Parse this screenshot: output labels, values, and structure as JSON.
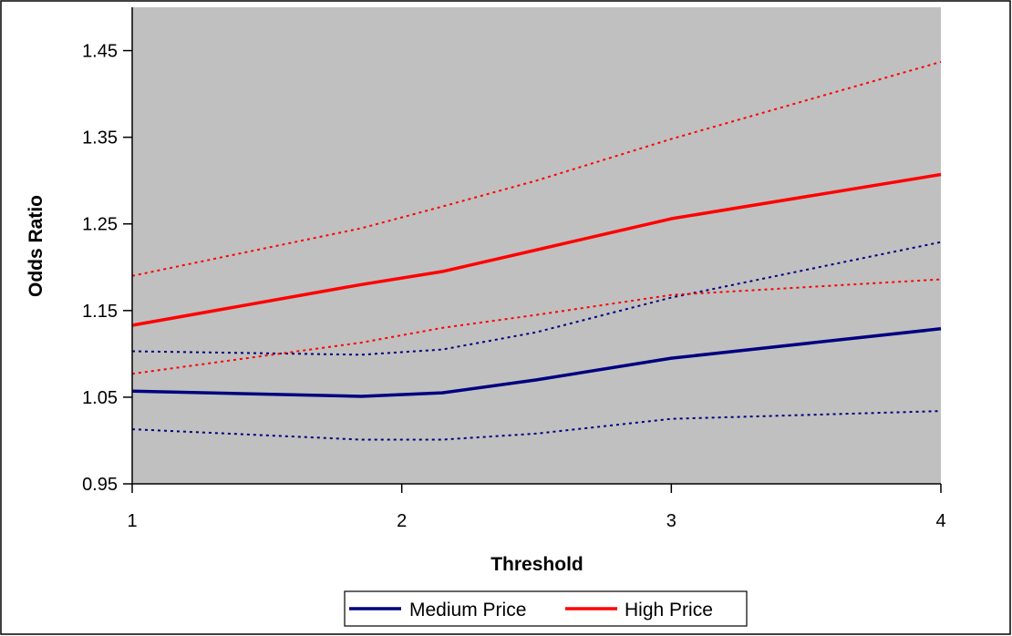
{
  "chart_data": {
    "type": "line",
    "title": "",
    "xlabel": "Threshold",
    "ylabel": "Odds Ratio",
    "x": [
      1,
      1.85,
      2.15,
      2.5,
      3,
      4
    ],
    "xticks": [
      "1",
      "2",
      "3",
      "4"
    ],
    "xtick_values": [
      1,
      2,
      3,
      4
    ],
    "yticks": [
      "0.95",
      "1.05",
      "1.15",
      "1.25",
      "1.35",
      "1.45"
    ],
    "ytick_values": [
      0.95,
      1.05,
      1.15,
      1.25,
      1.35,
      1.45
    ],
    "xlim": [
      1,
      4
    ],
    "ylim": [
      0.95,
      1.5
    ],
    "grid": false,
    "plot_background": "#c0c0c0",
    "legend_position": "bottom",
    "series": [
      {
        "name": "Medium Price",
        "color": "#000080",
        "style": "solid",
        "values": [
          1.057,
          1.051,
          1.055,
          1.07,
          1.095,
          1.129
        ]
      },
      {
        "name": "",
        "color": "#000080",
        "style": "dotted",
        "values": [
          1.103,
          1.099,
          1.105,
          1.125,
          1.165,
          1.229
        ]
      },
      {
        "name": "",
        "color": "#000080",
        "style": "dotted",
        "values": [
          1.013,
          1.001,
          1.001,
          1.008,
          1.025,
          1.034
        ]
      },
      {
        "name": "High Price",
        "color": "#ff0000",
        "style": "solid",
        "values": [
          1.133,
          1.18,
          1.195,
          1.22,
          1.256,
          1.307
        ]
      },
      {
        "name": "",
        "color": "#ff0000",
        "style": "dotted",
        "values": [
          1.19,
          1.245,
          1.27,
          1.3,
          1.348,
          1.437
        ]
      },
      {
        "name": "",
        "color": "#ff0000",
        "style": "dotted",
        "values": [
          1.077,
          1.113,
          1.13,
          1.145,
          1.168,
          1.186
        ]
      }
    ]
  }
}
